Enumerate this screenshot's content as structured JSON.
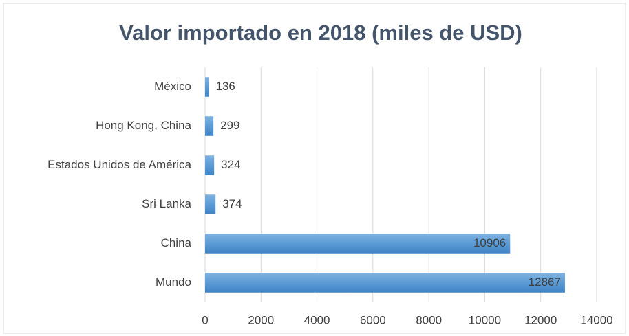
{
  "chart_data": {
    "type": "bar",
    "orientation": "horizontal",
    "title": "Valor importado en 2018 (miles de USD)",
    "categories": [
      "México",
      "Hong Kong, China",
      "Estados Unidos de América",
      "Sri Lanka",
      "China",
      "Mundo"
    ],
    "values": [
      136,
      299,
      324,
      374,
      10906,
      12867
    ],
    "color": "#5b9bd5",
    "xlim": [
      0,
      14000
    ],
    "xticks": [
      0,
      2000,
      4000,
      6000,
      8000,
      10000,
      12000,
      14000
    ],
    "grid": true
  }
}
